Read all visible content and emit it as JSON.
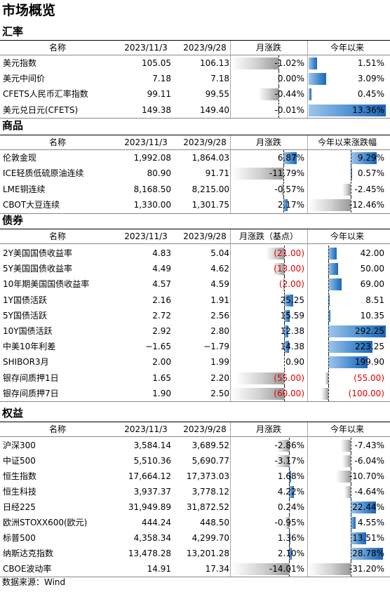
{
  "page": {
    "title": "市场概览",
    "source": "数据来源：Wind"
  },
  "colors": {
    "positive_bar": "#2f74c0",
    "negative_bar": "#a0a0a0",
    "negative_text": "#e00000"
  },
  "sections": [
    {
      "key": "fx",
      "title": "汇率",
      "headers": [
        "名称",
        "2023/11/3",
        "2023/9/28",
        "月涨跌",
        "今年以来"
      ],
      "mmax": 1.02,
      "ymax": 13.36,
      "rows": [
        {
          "name": "美元指数",
          "v1": "105.05",
          "v2": "106.13",
          "m": -1.02,
          "ml": "-1.02%",
          "y": 1.51,
          "yl": "1.51%"
        },
        {
          "name": "美元中间价",
          "v1": "7.18",
          "v2": "7.18",
          "m": 0.0,
          "ml": "0.00%",
          "y": 3.09,
          "yl": "3.09%"
        },
        {
          "name": "CFETS人民币汇率指数",
          "v1": "99.11",
          "v2": "99.55",
          "m": -0.44,
          "ml": "-0.44%",
          "y": 0.45,
          "yl": "0.45%"
        },
        {
          "name": "美元兑日元(CFETS)",
          "v1": "149.38",
          "v2": "149.40",
          "m": -0.01,
          "ml": "-0.01%",
          "y": 13.36,
          "yl": "13.36%"
        }
      ]
    },
    {
      "key": "commodity",
      "title": "商品",
      "headers": [
        "名称",
        "2023/11/3",
        "2023/9/28",
        "月涨跌",
        "今年以来涨跌幅"
      ],
      "mmax": 11.79,
      "ymax": 12.46,
      "rows": [
        {
          "name": "伦敦金现",
          "v1": "1,992.08",
          "v2": "1,864.03",
          "m": 6.87,
          "ml": "6.87%",
          "y": 9.29,
          "yl": "9.29%"
        },
        {
          "name": "ICE轻质低硫原油连续",
          "v1": "80.90",
          "v2": "91.71",
          "m": -11.79,
          "ml": "-11.79%",
          "y": 0.57,
          "yl": "0.57%"
        },
        {
          "name": "LME铜连续",
          "v1": "8,168.50",
          "v2": "8,215.00",
          "m": -0.57,
          "ml": "-0.57%",
          "y": -2.45,
          "yl": "-2.45%"
        },
        {
          "name": "CBOT大豆连续",
          "v1": "1,330.00",
          "v2": "1,301.75",
          "m": 2.17,
          "ml": "2.17%",
          "y": -12.46,
          "yl": "-12.46%"
        }
      ]
    },
    {
      "key": "bond",
      "title": "债券",
      "headers": [
        "名称",
        "2023/11/3",
        "2023/9/28",
        "月涨跌（基点）",
        "今年以来"
      ],
      "mmax": 60.0,
      "ymax": 292.25,
      "rows": [
        {
          "name": "2Y美国国债收益率",
          "v1": "4.83",
          "v2": "5.04",
          "m": -21.0,
          "ml": "(21.00)",
          "y": 42.0,
          "yl": "42.00"
        },
        {
          "name": "5Y美国国债收益率",
          "v1": "4.49",
          "v2": "4.62",
          "m": -13.0,
          "ml": "(13.00)",
          "y": 50.0,
          "yl": "50.00"
        },
        {
          "name": "10年期美国国债收益率",
          "v1": "4.57",
          "v2": "4.59",
          "m": -2.0,
          "ml": "(2.00)",
          "y": 69.0,
          "yl": "69.00"
        },
        {
          "name": "1Y国债活跃",
          "v1": "2.16",
          "v2": "1.91",
          "m": 25.25,
          "ml": "25.25",
          "y": 8.51,
          "yl": "8.51"
        },
        {
          "name": "5Y国债活跃",
          "v1": "2.72",
          "v2": "2.56",
          "m": 15.59,
          "ml": "15.59",
          "y": 10.35,
          "yl": "10.35"
        },
        {
          "name": "10Y国债活跃",
          "v1": "2.92",
          "v2": "2.80",
          "m": 12.38,
          "ml": "12.38",
          "y": 292.25,
          "yl": "292.25"
        },
        {
          "name": "中美10年利差",
          "v1": "−1.65",
          "v2": "−1.79",
          "m": 14.38,
          "ml": "14.38",
          "y": 223.25,
          "yl": "223.25"
        },
        {
          "name": "SHIBOR3月",
          "v1": "2.00",
          "v2": "1.99",
          "m": 0.9,
          "ml": "0.90",
          "y": 199.9,
          "yl": "199.90"
        },
        {
          "name": "银存间质押1日",
          "v1": "1.65",
          "v2": "2.20",
          "m": -55.0,
          "ml": "(55.00)",
          "y": -55.0,
          "yl": "(55.00)"
        },
        {
          "name": "银存间质押7日",
          "v1": "1.90",
          "v2": "2.50",
          "m": -60.0,
          "ml": "(60.00)",
          "y": -100.0,
          "yl": "(100.00)"
        }
      ]
    },
    {
      "key": "equity",
      "title": "权益",
      "headers": [
        "名称",
        "2023/11/3",
        "2023/9/28",
        "月涨跌",
        "今年以来"
      ],
      "mmax": 14.01,
      "ymax": 31.2,
      "rows": [
        {
          "name": "沪深300",
          "v1": "3,584.14",
          "v2": "3,689.52",
          "m": -2.86,
          "ml": "-2.86%",
          "y": -7.43,
          "yl": "-7.43%"
        },
        {
          "name": "中证500",
          "v1": "5,510.36",
          "v2": "5,690.77",
          "m": -3.17,
          "ml": "-3.17%",
          "y": -6.04,
          "yl": "-6.04%"
        },
        {
          "name": "恒生指数",
          "v1": "17,664.12",
          "v2": "17,373.03",
          "m": 1.68,
          "ml": "1.68%",
          "y": -10.7,
          "yl": "-10.70%"
        },
        {
          "name": "恒生科技",
          "v1": "3,937.37",
          "v2": "3,778.12",
          "m": 4.22,
          "ml": "4.22%",
          "y": -4.64,
          "yl": "-4.64%"
        },
        {
          "name": "日经225",
          "v1": "31,949.89",
          "v2": "31,872.52",
          "m": 0.24,
          "ml": "0.24%",
          "y": 22.44,
          "yl": "22.44%"
        },
        {
          "name": "欧洲STOXX600(欧元)",
          "v1": "444.24",
          "v2": "448.50",
          "m": -0.95,
          "ml": "-0.95%",
          "y": 4.55,
          "yl": "4.55%"
        },
        {
          "name": "标普500",
          "v1": "4,358.34",
          "v2": "4,299.70",
          "m": 1.36,
          "ml": "1.36%",
          "y": 13.51,
          "yl": "13.51%"
        },
        {
          "name": "纳斯达克指数",
          "v1": "13,478.28",
          "v2": "13,201.28",
          "m": 2.1,
          "ml": "2.10%",
          "y": 28.78,
          "yl": "28.78%"
        },
        {
          "name": "CBOE波动率",
          "v1": "14.91",
          "v2": "17.34",
          "m": -14.01,
          "ml": "-14.01%",
          "y": -31.2,
          "yl": "-31.20%"
        }
      ]
    }
  ]
}
